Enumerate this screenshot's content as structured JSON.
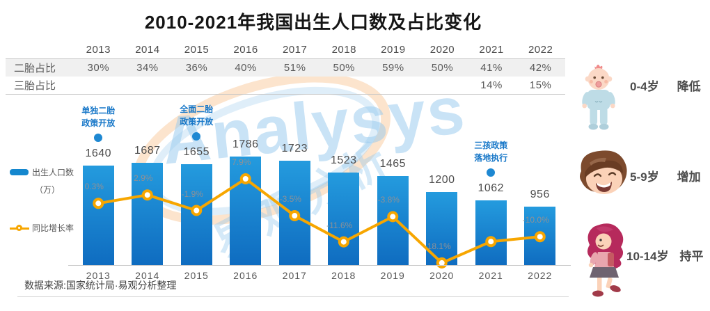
{
  "header": {
    "title": "2010-2021年我国出生人口数及占比变化"
  },
  "table": {
    "years": [
      "2013",
      "2014",
      "2015",
      "2016",
      "2017",
      "2018",
      "2019",
      "2020",
      "2021",
      "2022"
    ],
    "rows": [
      {
        "key": "second-child-ratio",
        "label": "二胎占比",
        "values": [
          "30%",
          "34%",
          "36%",
          "40%",
          "51%",
          "50%",
          "59%",
          "50%",
          "41%",
          "42%"
        ]
      },
      {
        "key": "third-child-ratio",
        "label": "三胎占比",
        "values": [
          "",
          "",
          "",
          "",
          "",
          "",
          "",
          "",
          "14%",
          "15%"
        ]
      }
    ]
  },
  "legend": {
    "bar_label": "出生人口数",
    "bar_unit": "（万）",
    "line_label": "同比增长率"
  },
  "chart_data": {
    "type": "bar",
    "combo": "bar+line",
    "title": "2010-2021年我国出生人口数及占比变化",
    "categories": [
      "2013",
      "2014",
      "2015",
      "2016",
      "2017",
      "2018",
      "2019",
      "2020",
      "2021",
      "2022"
    ],
    "series": [
      {
        "name": "出生人口数（万）",
        "type": "bar",
        "values": [
          1640,
          1687,
          1655,
          1786,
          1723,
          1523,
          1465,
          1200,
          1062,
          956
        ],
        "color_top": "#249BDE",
        "color_bottom": "#0F6CC0"
      },
      {
        "name": "同比增长率",
        "type": "line",
        "unit": "%",
        "values": [
          0.3,
          2.9,
          -1.9,
          7.9,
          -3.5,
          -11.6,
          -3.8,
          -18.1,
          -11.5,
          -10.0
        ],
        "labels": [
          "0.3%",
          "2.9%",
          "-1.9%",
          "7.9%",
          "-3.5%",
          "-11.6%",
          "-3.8%",
          "-18.1%",
          "",
          "-10.0%"
        ],
        "color": "#F7A600"
      }
    ],
    "annotations": [
      {
        "year": "2013",
        "text": "单独二胎\n政策开放"
      },
      {
        "year": "2015",
        "text": "全面二胎\n政策开放"
      },
      {
        "year": "2021",
        "text": "三孩政策\n落地执行"
      }
    ],
    "xlabel": "",
    "ylabel": "出生人口数（万）",
    "ylim_bar": [
      0,
      1800
    ],
    "grid": false,
    "legend_position": "left"
  },
  "aside": {
    "items": [
      {
        "age": "0-4岁",
        "trend": "降低",
        "figure": "baby-icon"
      },
      {
        "age": "5-9岁",
        "trend": "增加",
        "figure": "boy-icon"
      },
      {
        "age": "10-14岁",
        "trend": "持平",
        "figure": "girl-icon"
      }
    ]
  },
  "watermark": {
    "text": "Analysys",
    "text_cn": "易观分析"
  },
  "footer": {
    "source": "数据来源:国家统计局·易观分析整理"
  },
  "colors": {
    "bar": "#1487CE",
    "line": "#F7A600",
    "annotation": "#1777C8",
    "table_band": "#F0F0F0"
  }
}
